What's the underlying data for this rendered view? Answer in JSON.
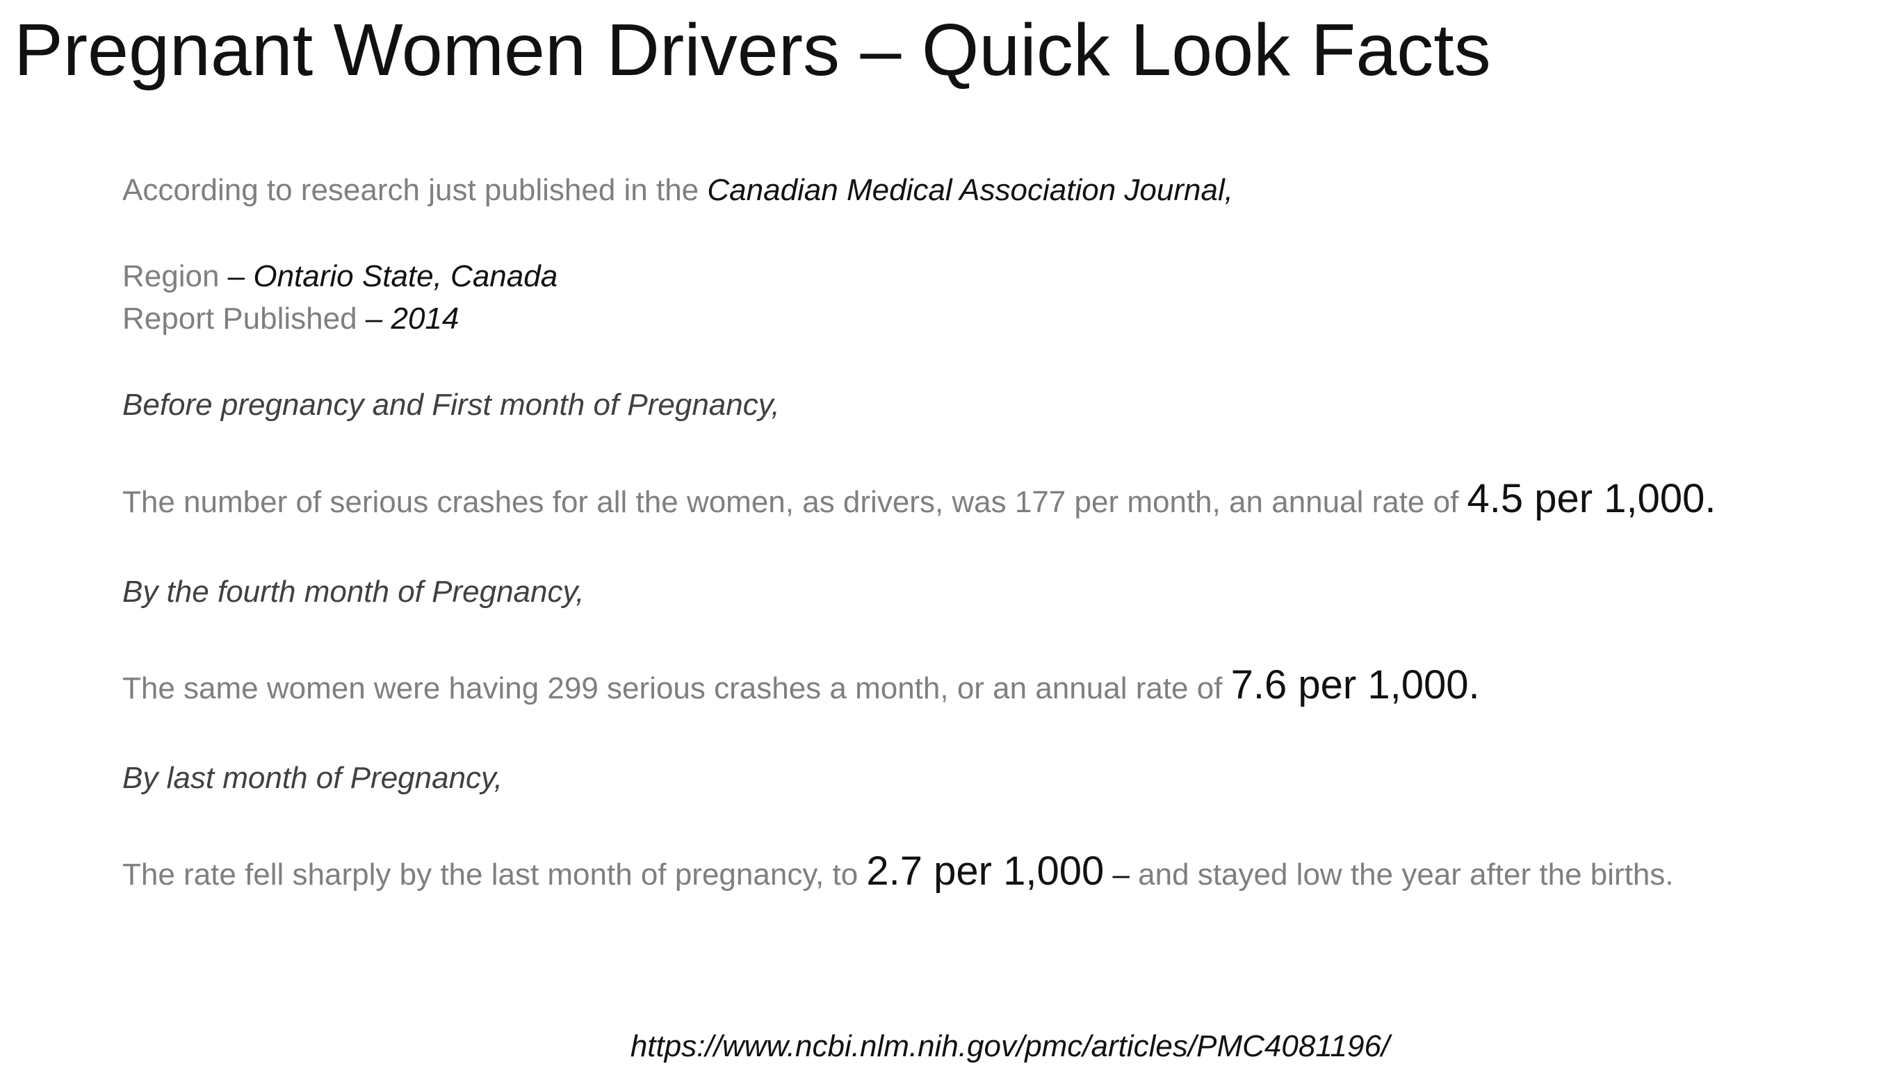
{
  "slide": {
    "title": "Pregnant Women Drivers – Quick Look Facts",
    "intro": {
      "prefix": "According to research just published in the ",
      "journal": "Canadian Medical Association Journal,"
    },
    "region": {
      "label": "Region",
      "value": " – Ontario State, Canada"
    },
    "report": {
      "label": "Report Published",
      "value": " – 2014"
    },
    "sections": [
      {
        "heading": "Before pregnancy and First month of Pregnancy,",
        "text": "The number of serious crashes for all the women, as drivers, was 177 per month, an annual rate of ",
        "highlight": "4.5 per 1,000.",
        "suffix_dash": "",
        "suffix": ""
      },
      {
        "heading": "By the fourth month of Pregnancy,",
        "text": "The same women were having 299 serious crashes a month, or an annual rate of ",
        "highlight": "7.6 per 1,000.",
        "suffix_dash": "",
        "suffix": ""
      },
      {
        "heading": "By last month of Pregnancy,",
        "text": "The rate fell sharply by the last month of pregnancy, to ",
        "highlight": "2.7 per 1,000",
        "suffix_dash": " –",
        "suffix": " and stayed low the year after the births."
      }
    ],
    "source_url": "https://www.ncbi.nlm.nih.gov/pmc/articles/PMC4081196/"
  }
}
